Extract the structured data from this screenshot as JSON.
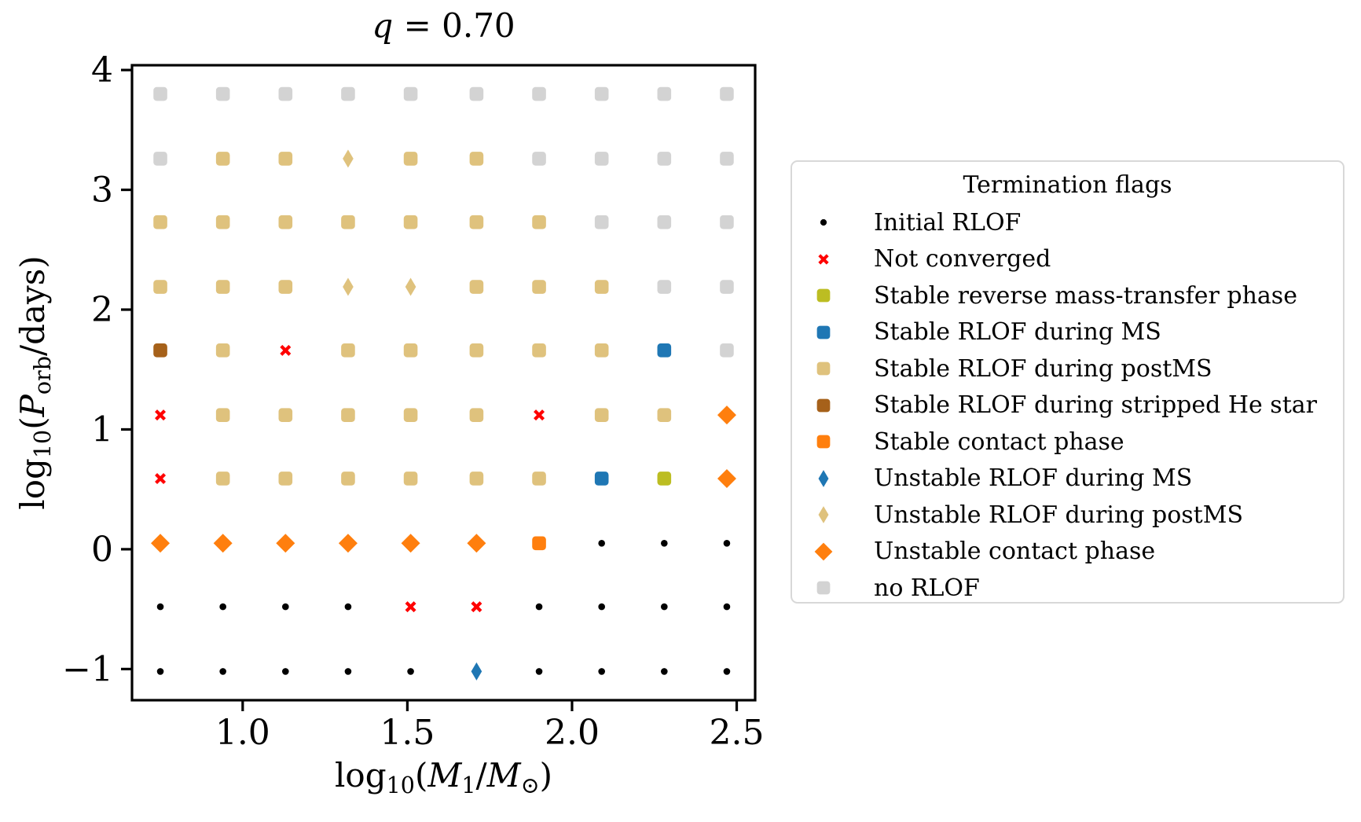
{
  "chart_data": {
    "type": "scatter",
    "title": "q = 0.70",
    "xlabel": "log10(M1/M_sun)",
    "ylabel": "log10(P_orb/days)",
    "xlim": [
      0.664,
      2.556
    ],
    "ylim": [
      -1.26,
      4.04
    ],
    "grid_lines": false,
    "xticks": [
      1.0,
      1.5,
      2.0,
      2.5
    ],
    "xtick_labels": [
      "1.0",
      "1.5",
      "2.0",
      "2.5"
    ],
    "yticks": [
      4,
      3,
      2,
      1,
      0,
      -1
    ],
    "ytick_labels": [
      "4",
      "3",
      "2",
      "1",
      "0",
      "−1"
    ],
    "x_values": [
      0.75,
      0.94,
      1.13,
      1.32,
      1.51,
      1.71,
      1.9,
      2.09,
      2.28,
      2.47
    ],
    "flag_codes": {
      "G": "no_RLOF",
      "T": "stable_RLOF_postMS",
      "t": "unstable_RLOF_postMS",
      "B": "stable_RLOF_MS",
      "b": "unstable_RLOF_MS",
      "H": "stable_RLOF_stripped_He",
      "O": "stable_contact",
      "o": "unstable_contact",
      "R": "stable_reverse_MT",
      "X": "not_converged",
      ".": "initial_RLOF"
    },
    "rows": [
      {
        "y": 3.8,
        "flags": "GGGGGGGGGG"
      },
      {
        "y": 3.26,
        "flags": "GTTtTTGGGG"
      },
      {
        "y": 2.73,
        "flags": "TTTTTTTGGG"
      },
      {
        "y": 2.19,
        "flags": "TTTttTTTGG"
      },
      {
        "y": 1.66,
        "flags": "HTXTTTTTBG"
      },
      {
        "y": 1.12,
        "flags": "XTTTTTXTTo"
      },
      {
        "y": 0.59,
        "flags": "XTTTTTTBRo"
      },
      {
        "y": 0.05,
        "flags": "ooooooO..."
      },
      {
        "y": -0.48,
        "flags": "....XX...."
      },
      {
        "y": -1.02,
        "flags": ".....b...."
      }
    ],
    "markers": {
      "initial_RLOF": {
        "shape": "dot",
        "color": "#000000",
        "label": "Initial RLOF"
      },
      "not_converged": {
        "shape": "x",
        "color": "#ff0000",
        "label": "Not converged"
      },
      "stable_reverse_MT": {
        "shape": "square",
        "color": "#bcbd22",
        "label": "Stable reverse mass-transfer phase"
      },
      "stable_RLOF_MS": {
        "shape": "square",
        "color": "#1f77b4",
        "label": "Stable RLOF during MS"
      },
      "stable_RLOF_postMS": {
        "shape": "square",
        "color": "#dfc27d",
        "label": "Stable RLOF during postMS"
      },
      "stable_RLOF_stripped_He": {
        "shape": "square",
        "color": "#a6611a",
        "label": "Stable RLOF during stripped He star"
      },
      "stable_contact": {
        "shape": "square",
        "color": "#ff7f0e",
        "label": "Stable contact phase"
      },
      "unstable_RLOF_MS": {
        "shape": "diamond_thin",
        "color": "#1f77b4",
        "label": "Unstable RLOF during MS"
      },
      "unstable_RLOF_postMS": {
        "shape": "diamond_thin",
        "color": "#dfc27d",
        "label": "Unstable RLOF during postMS"
      },
      "unstable_contact": {
        "shape": "diamond",
        "color": "#ff7f0e",
        "label": "Unstable contact phase"
      },
      "no_RLOF": {
        "shape": "square",
        "color": "#d3d3d3",
        "label": "no RLOF"
      }
    },
    "legend": {
      "title": "Termination flags",
      "position": "right",
      "order": [
        "initial_RLOF",
        "not_converged",
        "stable_reverse_MT",
        "stable_RLOF_MS",
        "stable_RLOF_postMS",
        "stable_RLOF_stripped_He",
        "stable_contact",
        "unstable_RLOF_MS",
        "unstable_RLOF_postMS",
        "unstable_contact",
        "no_RLOF"
      ]
    }
  },
  "label_segments": {
    "title": [
      {
        "t": "q",
        "i": true
      },
      {
        "t": " = 0.70"
      }
    ],
    "xlabel": [
      {
        "t": "log"
      },
      {
        "t": "10",
        "sub": true
      },
      {
        "t": "("
      },
      {
        "t": "M",
        "i": true
      },
      {
        "t": "1",
        "sub": true
      },
      {
        "t": "/"
      },
      {
        "t": "M",
        "i": true
      },
      {
        "t": "⊙",
        "sub": true
      },
      {
        "t": ")"
      }
    ],
    "ylabel": [
      {
        "t": "log"
      },
      {
        "t": "10",
        "sub": true
      },
      {
        "t": "("
      },
      {
        "t": "P",
        "i": true
      },
      {
        "t": "orb",
        "sub": true
      },
      {
        "t": "/days)"
      }
    ]
  }
}
